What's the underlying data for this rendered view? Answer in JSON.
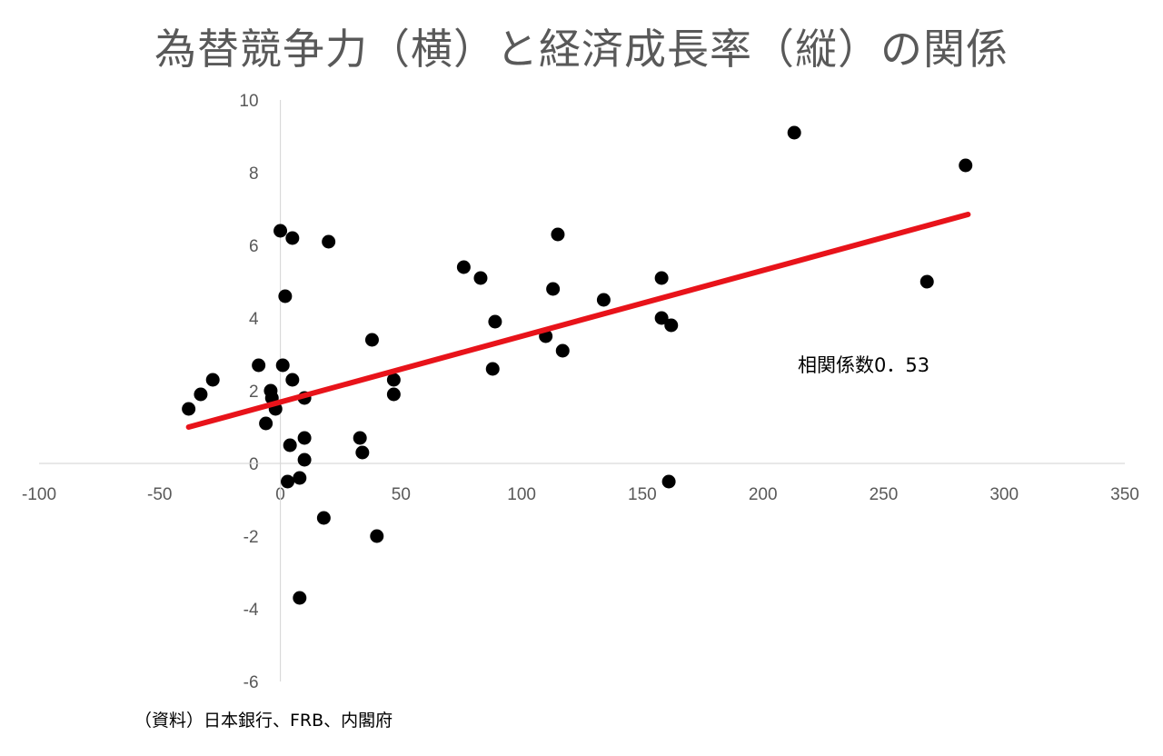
{
  "chart_data": {
    "type": "scatter",
    "title": "為替競争力（横）と経済成長率（縦）の関係",
    "xlim": [
      -100,
      350
    ],
    "ylim": [
      -6,
      10
    ],
    "xticks": [
      -100,
      -50,
      0,
      50,
      100,
      150,
      200,
      250,
      300,
      350
    ],
    "yticks": [
      -6,
      -4,
      -2,
      0,
      2,
      4,
      6,
      8,
      10
    ],
    "grid": false,
    "colors": {
      "points": "#000000",
      "trendline": "#e8131a",
      "axis": "#d9d9d9",
      "ticks": "#595959"
    },
    "points": [
      {
        "x": -38,
        "y": 1.5
      },
      {
        "x": -33,
        "y": 1.9
      },
      {
        "x": -28,
        "y": 2.3
      },
      {
        "x": -9,
        "y": 2.7
      },
      {
        "x": -6,
        "y": 1.1
      },
      {
        "x": -4,
        "y": 2.0
      },
      {
        "x": -3.5,
        "y": 1.8
      },
      {
        "x": -2,
        "y": 1.5
      },
      {
        "x": 0,
        "y": 6.4
      },
      {
        "x": 1,
        "y": 2.7
      },
      {
        "x": 2,
        "y": 4.6
      },
      {
        "x": 3,
        "y": -0.5
      },
      {
        "x": 4,
        "y": 0.5
      },
      {
        "x": 5,
        "y": 6.2
      },
      {
        "x": 5,
        "y": 2.3
      },
      {
        "x": 8,
        "y": -0.4
      },
      {
        "x": 8,
        "y": -3.7
      },
      {
        "x": 10,
        "y": 1.8
      },
      {
        "x": 10,
        "y": 0.7
      },
      {
        "x": 10,
        "y": 0.1
      },
      {
        "x": 18,
        "y": -1.5
      },
      {
        "x": 20,
        "y": 6.1
      },
      {
        "x": 33,
        "y": 0.7
      },
      {
        "x": 34,
        "y": 0.3
      },
      {
        "x": 38,
        "y": 3.4
      },
      {
        "x": 40,
        "y": -2.0
      },
      {
        "x": 47,
        "y": 2.3
      },
      {
        "x": 47,
        "y": 1.9
      },
      {
        "x": 76,
        "y": 5.4
      },
      {
        "x": 83,
        "y": 5.1
      },
      {
        "x": 88,
        "y": 2.6
      },
      {
        "x": 89,
        "y": 3.9
      },
      {
        "x": 110,
        "y": 3.5
      },
      {
        "x": 113,
        "y": 4.8
      },
      {
        "x": 115,
        "y": 6.3
      },
      {
        "x": 117,
        "y": 3.1
      },
      {
        "x": 134,
        "y": 4.5
      },
      {
        "x": 158,
        "y": 5.1
      },
      {
        "x": 158,
        "y": 4.0
      },
      {
        "x": 161,
        "y": -0.5
      },
      {
        "x": 162,
        "y": 3.8
      },
      {
        "x": 213,
        "y": 9.1
      },
      {
        "x": 268,
        "y": 5.0
      },
      {
        "x": 284,
        "y": 8.2
      }
    ],
    "trendline": {
      "x": [
        -38,
        285
      ],
      "y": [
        1.0,
        6.85
      ]
    },
    "annotations": [
      {
        "text": "相関係数0．53"
      }
    ]
  },
  "source_note": "（資料）日本銀行、FRB、内閣府"
}
